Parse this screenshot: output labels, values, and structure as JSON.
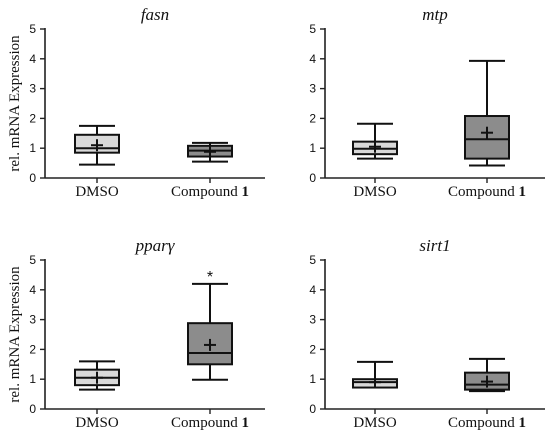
{
  "chart_data": [
    {
      "type": "box",
      "title": "fasn",
      "ylabel": "rel. mRNA Expression",
      "ylim": [
        0,
        5
      ],
      "yticks": [
        "0",
        "1",
        "2",
        "3",
        "4",
        "5"
      ],
      "categories": [
        {
          "label": "DMSO",
          "suffix": ""
        },
        {
          "label": "Compound ",
          "suffix": "1"
        }
      ],
      "boxes": [
        {
          "min": 0.45,
          "q1": 0.85,
          "median": 1.0,
          "q3": 1.45,
          "max": 1.75,
          "mean": 1.1,
          "fill": "#d9d9d9"
        },
        {
          "min": 0.55,
          "q1": 0.72,
          "median": 0.92,
          "q3": 1.08,
          "max": 1.18,
          "mean": 0.88,
          "fill": "#8c8c8c"
        }
      ],
      "annotations": []
    },
    {
      "type": "box",
      "title": "mtp",
      "ylabel": "",
      "ylim": [
        0,
        5
      ],
      "yticks": [
        "0",
        "1",
        "2",
        "3",
        "4",
        "5"
      ],
      "categories": [
        {
          "label": "DMSO",
          "suffix": ""
        },
        {
          "label": "Compound ",
          "suffix": "1"
        }
      ],
      "boxes": [
        {
          "min": 0.65,
          "q1": 0.8,
          "median": 0.98,
          "q3": 1.22,
          "max": 1.82,
          "mean": 1.05,
          "fill": "#d9d9d9"
        },
        {
          "min": 0.42,
          "q1": 0.65,
          "median": 1.3,
          "q3": 2.08,
          "max": 3.93,
          "mean": 1.52,
          "fill": "#8c8c8c"
        }
      ],
      "annotations": []
    },
    {
      "type": "box",
      "title": "pparγ",
      "ylabel": "rel. mRNA Expression",
      "ylim": [
        0,
        5
      ],
      "yticks": [
        "0",
        "1",
        "2",
        "3",
        "4",
        "5"
      ],
      "categories": [
        {
          "label": "DMSO",
          "suffix": ""
        },
        {
          "label": "Compound ",
          "suffix": "1"
        }
      ],
      "boxes": [
        {
          "min": 0.65,
          "q1": 0.8,
          "median": 1.05,
          "q3": 1.32,
          "max": 1.6,
          "mean": 1.05,
          "fill": "#d9d9d9"
        },
        {
          "min": 0.98,
          "q1": 1.5,
          "median": 1.88,
          "q3": 2.88,
          "max": 4.2,
          "mean": 2.15,
          "fill": "#8c8c8c"
        }
      ],
      "annotations": [
        {
          "category": 1,
          "text": "*",
          "y": 4.6
        }
      ]
    },
    {
      "type": "box",
      "title": "sirt1",
      "ylabel": "",
      "ylim": [
        0,
        5
      ],
      "yticks": [
        "0",
        "1",
        "2",
        "3",
        "4",
        "5"
      ],
      "categories": [
        {
          "label": "DMSO",
          "suffix": ""
        },
        {
          "label": "Compound ",
          "suffix": "1"
        }
      ],
      "boxes": [
        {
          "min": 0.72,
          "q1": 0.72,
          "median": 0.9,
          "q3": 1.0,
          "max": 1.58,
          "mean": 0.9,
          "fill": "#d9d9d9"
        },
        {
          "min": 0.6,
          "q1": 0.65,
          "median": 0.82,
          "q3": 1.22,
          "max": 1.68,
          "mean": 0.92,
          "fill": "#8c8c8c"
        }
      ],
      "annotations": []
    }
  ]
}
